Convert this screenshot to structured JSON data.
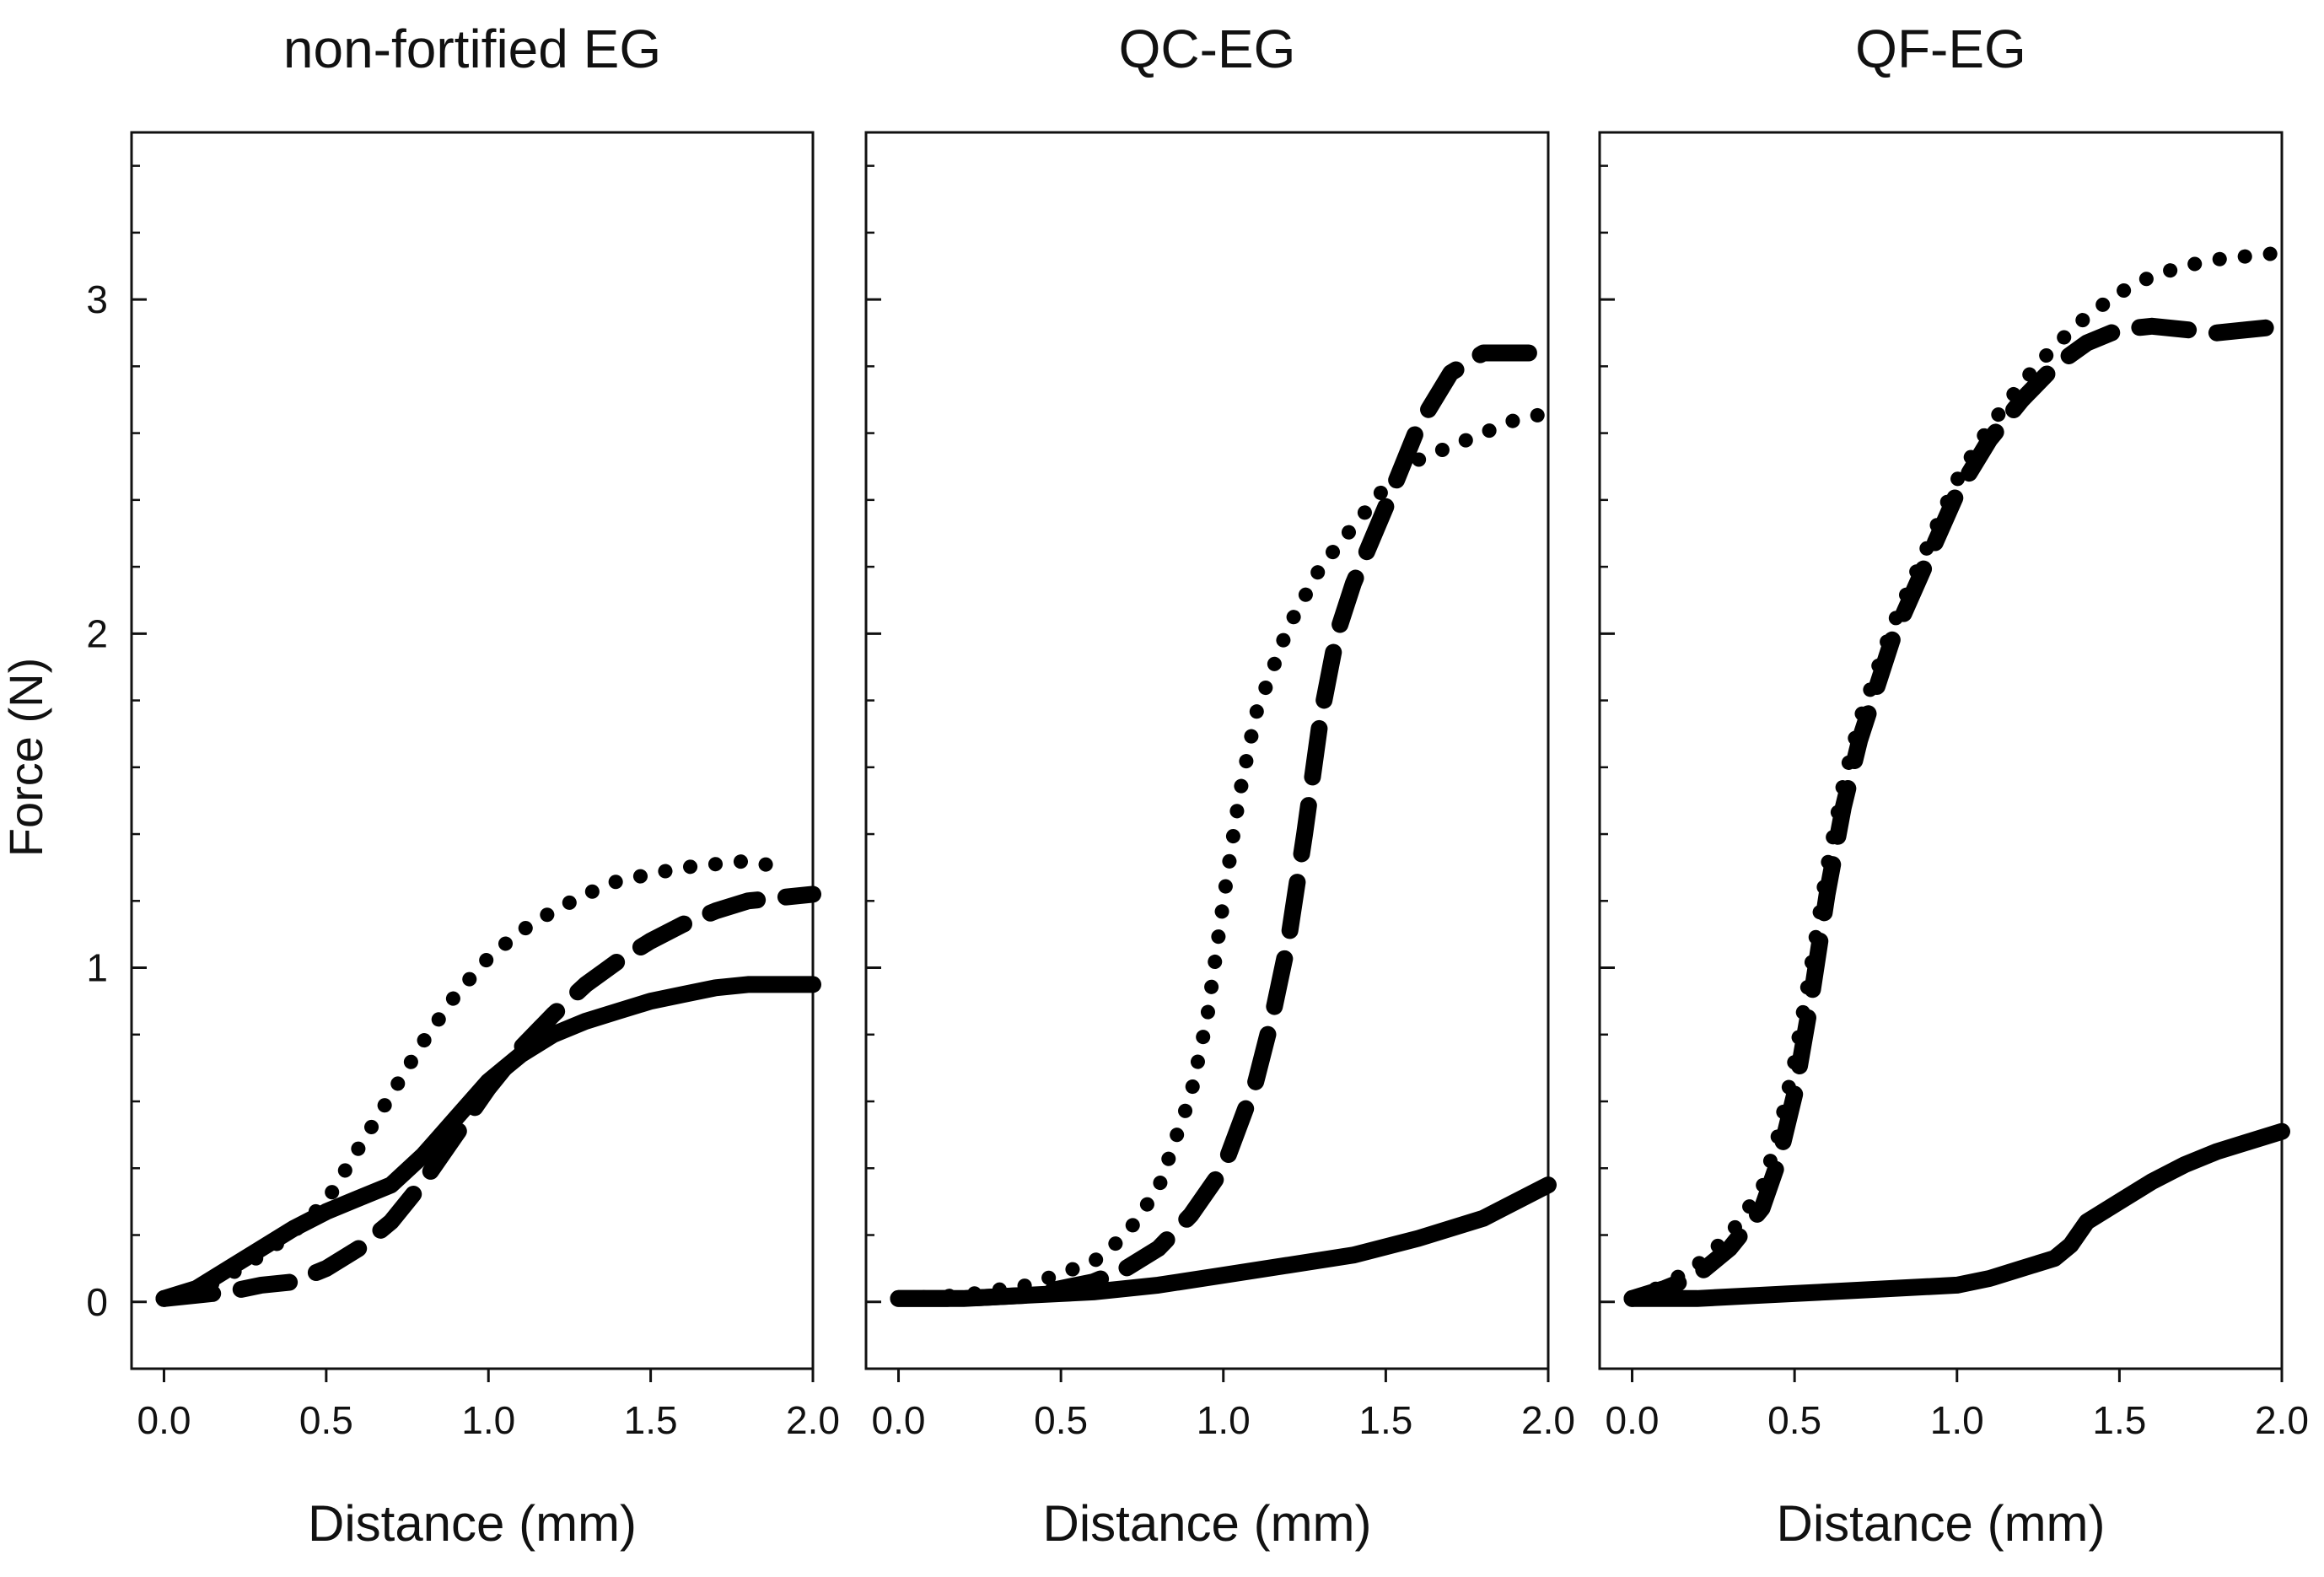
{
  "ylabel": "Force (N)",
  "chart_data": [
    {
      "type": "line",
      "title": "non-fortified EG",
      "xlabel": "Distance (mm)",
      "ylabel": "Force (N)",
      "xlim": [
        -0.1,
        2.0
      ],
      "ylim": [
        -0.2,
        3.5
      ],
      "x_ticks": [
        "0.0",
        "0.5",
        "1.0",
        "1.5",
        "2.0"
      ],
      "y_ticks": [
        "0",
        "1",
        "2",
        "3"
      ],
      "grid": false,
      "series": [
        {
          "line_style": "solid",
          "points": [
            [
              0.0,
              0.01
            ],
            [
              0.1,
              0.04
            ],
            [
              0.2,
              0.1
            ],
            [
              0.3,
              0.16
            ],
            [
              0.4,
              0.22
            ],
            [
              0.5,
              0.27
            ],
            [
              0.6,
              0.31
            ],
            [
              0.7,
              0.35
            ],
            [
              0.8,
              0.44
            ],
            [
              0.9,
              0.55
            ],
            [
              1.0,
              0.66
            ],
            [
              1.1,
              0.74
            ],
            [
              1.2,
              0.8
            ],
            [
              1.3,
              0.84
            ],
            [
              1.4,
              0.87
            ],
            [
              1.5,
              0.9
            ],
            [
              1.6,
              0.92
            ],
            [
              1.7,
              0.94
            ],
            [
              1.8,
              0.95
            ],
            [
              1.9,
              0.95
            ],
            [
              2.0,
              0.95
            ]
          ]
        },
        {
          "line_style": "dashed",
          "points": [
            [
              0.0,
              0.01
            ],
            [
              0.1,
              0.02
            ],
            [
              0.2,
              0.03
            ],
            [
              0.3,
              0.05
            ],
            [
              0.4,
              0.06
            ],
            [
              0.5,
              0.1
            ],
            [
              0.6,
              0.16
            ],
            [
              0.7,
              0.24
            ],
            [
              0.8,
              0.36
            ],
            [
              0.9,
              0.5
            ],
            [
              1.0,
              0.64
            ],
            [
              1.1,
              0.76
            ],
            [
              1.2,
              0.86
            ],
            [
              1.3,
              0.95
            ],
            [
              1.4,
              1.02
            ],
            [
              1.5,
              1.08
            ],
            [
              1.6,
              1.13
            ],
            [
              1.7,
              1.17
            ],
            [
              1.8,
              1.2
            ],
            [
              1.9,
              1.21
            ],
            [
              2.0,
              1.22
            ]
          ]
        },
        {
          "line_style": "dotted",
          "points": [
            [
              0.0,
              0.01
            ],
            [
              0.1,
              0.03
            ],
            [
              0.2,
              0.08
            ],
            [
              0.3,
              0.14
            ],
            [
              0.4,
              0.21
            ],
            [
              0.5,
              0.3
            ],
            [
              0.6,
              0.46
            ],
            [
              0.7,
              0.62
            ],
            [
              0.8,
              0.78
            ],
            [
              0.9,
              0.92
            ],
            [
              1.0,
              1.03
            ],
            [
              1.1,
              1.11
            ],
            [
              1.2,
              1.17
            ],
            [
              1.3,
              1.22
            ],
            [
              1.4,
              1.26
            ],
            [
              1.5,
              1.28
            ],
            [
              1.6,
              1.3
            ],
            [
              1.7,
              1.31
            ],
            [
              1.8,
              1.32
            ],
            [
              1.9,
              1.3
            ]
          ]
        }
      ]
    },
    {
      "type": "line",
      "title": "QC-EG",
      "xlabel": "Distance (mm)",
      "ylabel": "Force (N)",
      "xlim": [
        -0.1,
        2.0
      ],
      "ylim": [
        -0.2,
        3.5
      ],
      "x_ticks": [
        "0.0",
        "0.5",
        "1.0",
        "1.5",
        "2.0"
      ],
      "y_ticks": [
        "0",
        "1",
        "2",
        "3"
      ],
      "grid": false,
      "series": [
        {
          "line_style": "solid",
          "points": [
            [
              0.0,
              0.01
            ],
            [
              0.2,
              0.01
            ],
            [
              0.4,
              0.02
            ],
            [
              0.6,
              0.03
            ],
            [
              0.8,
              0.05
            ],
            [
              1.0,
              0.08
            ],
            [
              1.2,
              0.11
            ],
            [
              1.4,
              0.14
            ],
            [
              1.6,
              0.19
            ],
            [
              1.8,
              0.25
            ],
            [
              2.0,
              0.35
            ]
          ]
        },
        {
          "line_style": "dashed",
          "points": [
            [
              0.0,
              0.01
            ],
            [
              0.2,
              0.01
            ],
            [
              0.4,
              0.02
            ],
            [
              0.5,
              0.04
            ],
            [
              0.6,
              0.06
            ],
            [
              0.7,
              0.1
            ],
            [
              0.8,
              0.16
            ],
            [
              0.9,
              0.26
            ],
            [
              1.0,
              0.4
            ],
            [
              1.1,
              0.66
            ],
            [
              1.15,
              0.85
            ],
            [
              1.2,
              1.08
            ],
            [
              1.25,
              1.4
            ],
            [
              1.3,
              1.75
            ],
            [
              1.35,
              2.0
            ],
            [
              1.4,
              2.15
            ],
            [
              1.5,
              2.38
            ],
            [
              1.6,
              2.62
            ],
            [
              1.7,
              2.78
            ],
            [
              1.8,
              2.84
            ],
            [
              1.9,
              2.84
            ],
            [
              2.0,
              2.84
            ]
          ]
        },
        {
          "line_style": "dotted",
          "points": [
            [
              0.0,
              0.01
            ],
            [
              0.2,
              0.02
            ],
            [
              0.4,
              0.05
            ],
            [
              0.6,
              0.12
            ],
            [
              0.7,
              0.2
            ],
            [
              0.8,
              0.34
            ],
            [
              0.9,
              0.62
            ],
            [
              0.95,
              0.85
            ],
            [
              1.0,
              1.2
            ],
            [
              1.05,
              1.52
            ],
            [
              1.1,
              1.76
            ],
            [
              1.2,
              2.02
            ],
            [
              1.3,
              2.2
            ],
            [
              1.4,
              2.32
            ],
            [
              1.5,
              2.44
            ],
            [
              1.6,
              2.52
            ],
            [
              1.7,
              2.56
            ],
            [
              1.8,
              2.6
            ],
            [
              1.9,
              2.64
            ],
            [
              2.0,
              2.66
            ]
          ]
        }
      ]
    },
    {
      "type": "line",
      "title": "QF-EG",
      "xlabel": "Distance (mm)",
      "ylabel": "Force (N)",
      "xlim": [
        -0.1,
        2.0
      ],
      "ylim": [
        -0.2,
        3.5
      ],
      "x_ticks": [
        "0.0",
        "0.5",
        "1.0",
        "1.5",
        "2.0"
      ],
      "y_ticks": [
        "0",
        "1",
        "2",
        "3"
      ],
      "grid": false,
      "series": [
        {
          "line_style": "solid",
          "points": [
            [
              0.0,
              0.01
            ],
            [
              0.2,
              0.01
            ],
            [
              0.4,
              0.02
            ],
            [
              0.6,
              0.03
            ],
            [
              0.8,
              0.04
            ],
            [
              1.0,
              0.05
            ],
            [
              1.1,
              0.07
            ],
            [
              1.2,
              0.1
            ],
            [
              1.3,
              0.13
            ],
            [
              1.35,
              0.17
            ],
            [
              1.4,
              0.24
            ],
            [
              1.5,
              0.3
            ],
            [
              1.6,
              0.36
            ],
            [
              1.7,
              0.41
            ],
            [
              1.8,
              0.45
            ],
            [
              1.9,
              0.48
            ],
            [
              2.0,
              0.51
            ]
          ]
        },
        {
          "line_style": "dashed",
          "points": [
            [
              0.0,
              0.01
            ],
            [
              0.1,
              0.04
            ],
            [
              0.2,
              0.08
            ],
            [
              0.3,
              0.16
            ],
            [
              0.4,
              0.28
            ],
            [
              0.45,
              0.42
            ],
            [
              0.5,
              0.62
            ],
            [
              0.55,
              0.9
            ],
            [
              0.6,
              1.22
            ],
            [
              0.65,
              1.48
            ],
            [
              0.7,
              1.68
            ],
            [
              0.8,
              1.98
            ],
            [
              0.9,
              2.2
            ],
            [
              1.0,
              2.42
            ],
            [
              1.1,
              2.58
            ],
            [
              1.2,
              2.7
            ],
            [
              1.3,
              2.8
            ],
            [
              1.4,
              2.87
            ],
            [
              1.5,
              2.91
            ],
            [
              1.6,
              2.92
            ],
            [
              1.8,
              2.9
            ],
            [
              2.0,
              2.92
            ]
          ]
        },
        {
          "line_style": "dotted",
          "points": [
            [
              0.0,
              0.01
            ],
            [
              0.1,
              0.05
            ],
            [
              0.2,
              0.11
            ],
            [
              0.3,
              0.2
            ],
            [
              0.4,
              0.34
            ],
            [
              0.45,
              0.5
            ],
            [
              0.5,
              0.72
            ],
            [
              0.55,
              1.0
            ],
            [
              0.6,
              1.3
            ],
            [
              0.65,
              1.55
            ],
            [
              0.7,
              1.74
            ],
            [
              0.8,
              2.02
            ],
            [
              0.9,
              2.24
            ],
            [
              1.0,
              2.46
            ],
            [
              1.1,
              2.62
            ],
            [
              1.2,
              2.75
            ],
            [
              1.3,
              2.86
            ],
            [
              1.4,
              2.95
            ],
            [
              1.5,
              3.02
            ],
            [
              1.6,
              3.07
            ],
            [
              1.7,
              3.1
            ],
            [
              1.8,
              3.12
            ],
            [
              1.9,
              3.13
            ],
            [
              2.0,
              3.14
            ]
          ]
        }
      ]
    }
  ]
}
